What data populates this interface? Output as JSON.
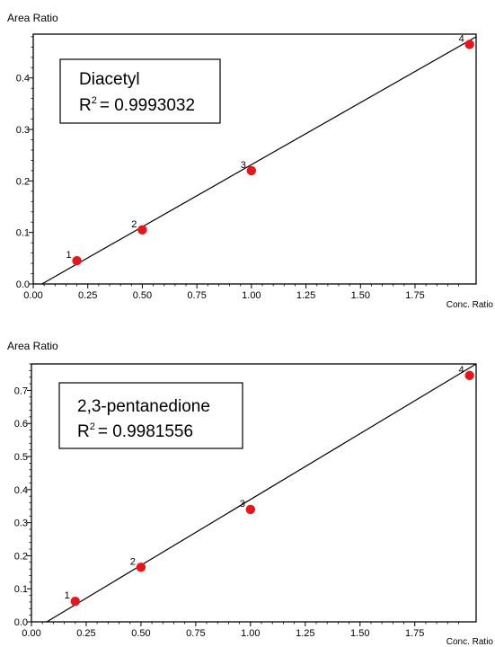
{
  "colors": {
    "marker": "#e8161b",
    "line": "#000000",
    "frame": "#000000",
    "background": "#ffffff"
  },
  "chart_data": [
    {
      "type": "scatter",
      "title": "Diacetyl",
      "r2_label": "R",
      "r2_sup": "2",
      "r2_value": "= 0.9993032",
      "ylabel": "Area Ratio",
      "xlabel": "Conc. Ratio",
      "xlim": [
        0,
        2.03
      ],
      "ylim": [
        0,
        0.485
      ],
      "x_ticks": [
        "0.00",
        "0.25",
        "0.50",
        "0.75",
        "1.00",
        "1.25",
        "1.50",
        "1.75"
      ],
      "x_tick_values": [
        0,
        0.25,
        0.5,
        0.75,
        1.0,
        1.25,
        1.5,
        1.75
      ],
      "y_ticks": [
        "0.0",
        "0.1",
        "0.2",
        "0.3",
        "0.4"
      ],
      "y_tick_values": [
        0,
        0.1,
        0.2,
        0.3,
        0.4
      ],
      "points": [
        {
          "label": "1",
          "x": 0.2,
          "y": 0.045
        },
        {
          "label": "2",
          "x": 0.5,
          "y": 0.105
        },
        {
          "label": "3",
          "x": 1.0,
          "y": 0.22
        },
        {
          "label": "4",
          "x": 2.0,
          "y": 0.465
        }
      ],
      "fit_line": {
        "x": [
          0.04,
          2.03
        ],
        "y": [
          0.0,
          0.48
        ]
      }
    },
    {
      "type": "scatter",
      "title": "2,3-pentanedione",
      "r2_label": "R",
      "r2_sup": "2",
      "r2_value": "= 0.9981556",
      "ylabel": "Area Ratio",
      "xlabel": "Conc. Ratio",
      "xlim": [
        0,
        2.03
      ],
      "ylim": [
        0,
        0.78
      ],
      "x_ticks": [
        "0.00",
        "0.25",
        "0.50",
        "0.75",
        "1.00",
        "1.25",
        "1.50",
        "1.75"
      ],
      "x_tick_values": [
        0,
        0.25,
        0.5,
        0.75,
        1.0,
        1.25,
        1.5,
        1.75
      ],
      "y_ticks": [
        "0.0",
        "0.1",
        "0.2",
        "0.3",
        "0.4",
        "0.5",
        "0.6",
        "0.7"
      ],
      "y_tick_values": [
        0,
        0.1,
        0.2,
        0.3,
        0.4,
        0.5,
        0.6,
        0.7
      ],
      "points": [
        {
          "label": "1",
          "x": 0.2,
          "y": 0.062
        },
        {
          "label": "2",
          "x": 0.5,
          "y": 0.165
        },
        {
          "label": "3",
          "x": 1.0,
          "y": 0.34
        },
        {
          "label": "4",
          "x": 2.0,
          "y": 0.745
        }
      ],
      "fit_line": {
        "x": [
          0.07,
          2.03
        ],
        "y": [
          0.0,
          0.78
        ]
      }
    }
  ]
}
